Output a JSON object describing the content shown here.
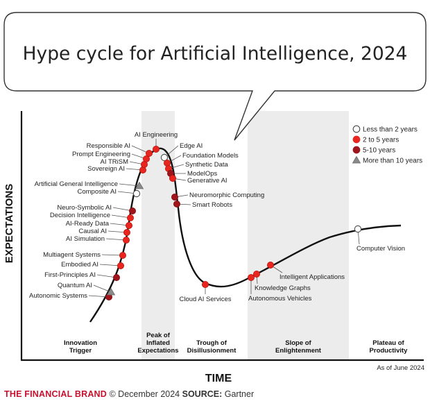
{
  "chart_data": {
    "type": "hype-cycle",
    "title": "Hype cycle for Artificial Intelligence, 2024",
    "xlabel": "TIME",
    "ylabel": "EXPECTATIONS",
    "as_of": "As of June 2024",
    "phases": [
      {
        "name": "Innovation Trigger",
        "lines": [
          "Innovation",
          "Trigger"
        ]
      },
      {
        "name": "Peak of Inflated Expectations",
        "lines": [
          "Peak of",
          "Inflated",
          "Expectations"
        ]
      },
      {
        "name": "Trough of Disillusionment",
        "lines": [
          "Trough of",
          "Disillusionment"
        ]
      },
      {
        "name": "Slope of Enlightenment",
        "lines": [
          "Slope of",
          "Enlightenment"
        ]
      },
      {
        "name": "Plateau of Productivity",
        "lines": [
          "Plateau of",
          "Productivity"
        ]
      }
    ],
    "legend": [
      {
        "key": "lt2",
        "label": "Less than 2 years",
        "marker": "circle-open"
      },
      {
        "key": "2to5",
        "label": "2 to 5 years",
        "marker": "circle",
        "color": "#e8251f"
      },
      {
        "key": "5to10",
        "label": "5-10 years",
        "marker": "circle",
        "color": "#a0141c"
      },
      {
        "key": "gt10",
        "label": "More than 10 years",
        "marker": "triangle",
        "color": "#8a8a8a"
      }
    ],
    "legend_placement": "top-right",
    "grid": false,
    "points": [
      {
        "label": "Autonomic Systems",
        "cat": "5to10"
      },
      {
        "label": "Quantum AI",
        "cat": "gt10"
      },
      {
        "label": "First-Principles AI",
        "cat": "5to10"
      },
      {
        "label": "Embodied AI",
        "cat": "2to5"
      },
      {
        "label": "Multiagent Systems",
        "cat": "2to5"
      },
      {
        "label": "AI Simulation",
        "cat": "2to5"
      },
      {
        "label": "Causal AI",
        "cat": "2to5"
      },
      {
        "label": "AI-Ready Data",
        "cat": "2to5"
      },
      {
        "label": "Decision Intelligence",
        "cat": "2to5"
      },
      {
        "label": "Neuro-Symbolic AI",
        "cat": "5to10"
      },
      {
        "label": "Composite AI",
        "cat": "lt2"
      },
      {
        "label": "Artificial General Intelligence",
        "cat": "gt10"
      },
      {
        "label": "Sovereign AI",
        "cat": "2to5"
      },
      {
        "label": "AI TRiSM",
        "cat": "2to5"
      },
      {
        "label": "Prompt Engineering",
        "cat": "2to5"
      },
      {
        "label": "Responsible AI",
        "cat": "2to5"
      },
      {
        "label": "AI Engineering",
        "cat": "2to5"
      },
      {
        "label": "Edge AI",
        "cat": "lt2"
      },
      {
        "label": "Foundation Models",
        "cat": "2to5"
      },
      {
        "label": "Synthetic Data",
        "cat": "2to5"
      },
      {
        "label": "ModelOps",
        "cat": "5to10"
      },
      {
        "label": "Generative AI",
        "cat": "2to5"
      },
      {
        "label": "Neuromorphic Computing",
        "cat": "5to10"
      },
      {
        "label": "Smart Robots",
        "cat": "5to10"
      },
      {
        "label": "Cloud AI Services",
        "cat": "2to5"
      },
      {
        "label": "Autonomous Vehicles",
        "cat": "2to5"
      },
      {
        "label": "Knowledge Graphs",
        "cat": "2to5"
      },
      {
        "label": "Intelligent Applications",
        "cat": "2to5"
      },
      {
        "label": "Computer Vision",
        "cat": "lt2"
      }
    ]
  },
  "footer": {
    "brand": "THE FINANCIAL BRAND",
    "copyright": "© December 2024",
    "source_label": "SOURCE:",
    "source": "Gartner"
  }
}
